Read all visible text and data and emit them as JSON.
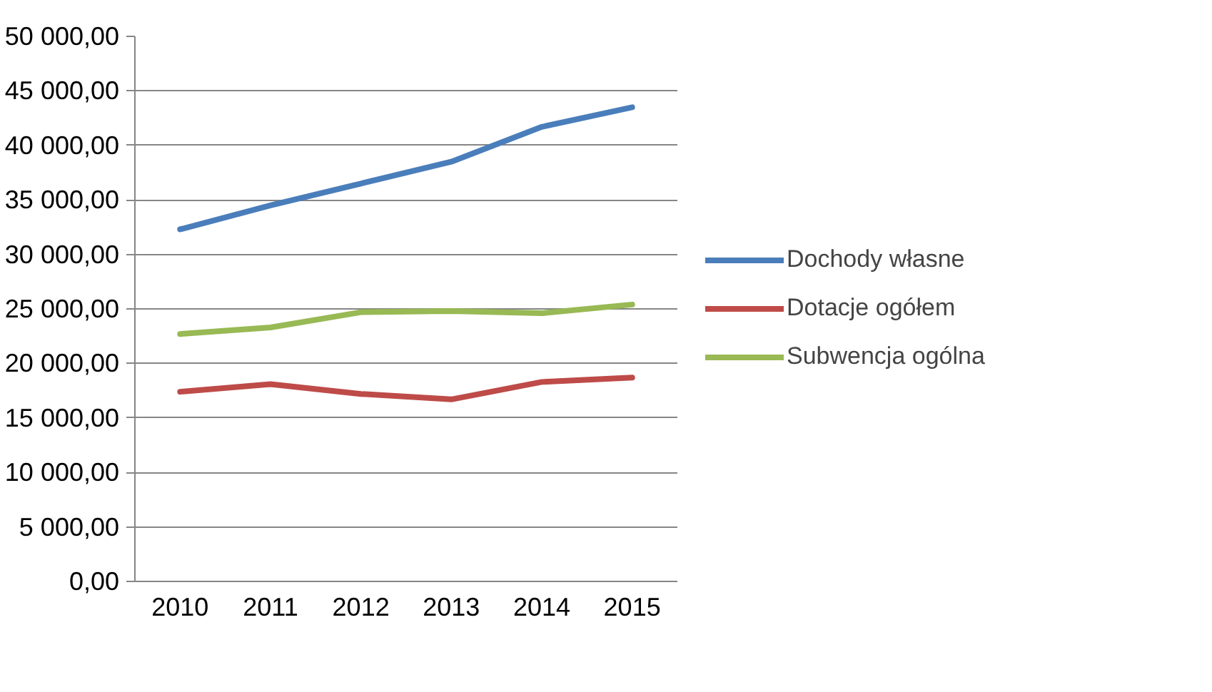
{
  "chart_data": {
    "type": "line",
    "categories": [
      "2010",
      "2011",
      "2012",
      "2013",
      "2014",
      "2015"
    ],
    "series": [
      {
        "name": "Dochody własne",
        "color": "#4a7ebb",
        "values": [
          32300,
          34500,
          36500,
          38500,
          41700,
          43500
        ]
      },
      {
        "name": "Dotacje ogółem",
        "color": "#be4b48",
        "values": [
          17400,
          18100,
          17200,
          16700,
          18300,
          18700
        ]
      },
      {
        "name": "Subwencja ogólna",
        "color": "#98b954",
        "values": [
          22700,
          23300,
          24700,
          24800,
          24600,
          25400
        ]
      }
    ],
    "ylim": [
      0,
      50000
    ],
    "yticks": [
      {
        "value": 0,
        "label": "0,00"
      },
      {
        "value": 5000,
        "label": "5 000,00"
      },
      {
        "value": 10000,
        "label": "10 000,00"
      },
      {
        "value": 15000,
        "label": "15 000,00"
      },
      {
        "value": 20000,
        "label": "20 000,00"
      },
      {
        "value": 25000,
        "label": "25 000,00"
      },
      {
        "value": 30000,
        "label": "30 000,00"
      },
      {
        "value": 35000,
        "label": "35 000,00"
      },
      {
        "value": 40000,
        "label": "40 000,00"
      },
      {
        "value": 45000,
        "label": "45 000,00"
      },
      {
        "value": 50000,
        "label": "50 000,00"
      }
    ],
    "grid": "y",
    "legend": "right",
    "marker": "none",
    "line_style": "solid"
  }
}
